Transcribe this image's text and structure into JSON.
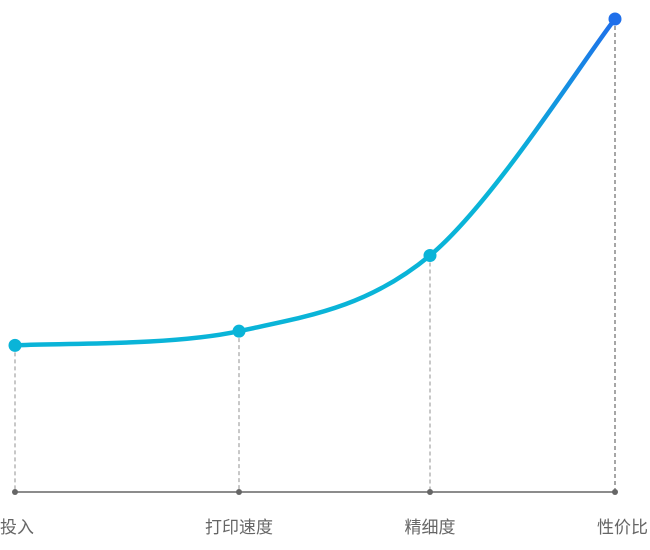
{
  "chart_data": {
    "type": "line",
    "categories": [
      "投入",
      "打印速度",
      "精细度",
      "性价比"
    ],
    "values": [
      31,
      34,
      50,
      100
    ],
    "ylim": [
      0,
      100
    ],
    "gradient": [
      "#0ab4d8",
      "#1f6fea"
    ],
    "axis_color": "#666666"
  }
}
